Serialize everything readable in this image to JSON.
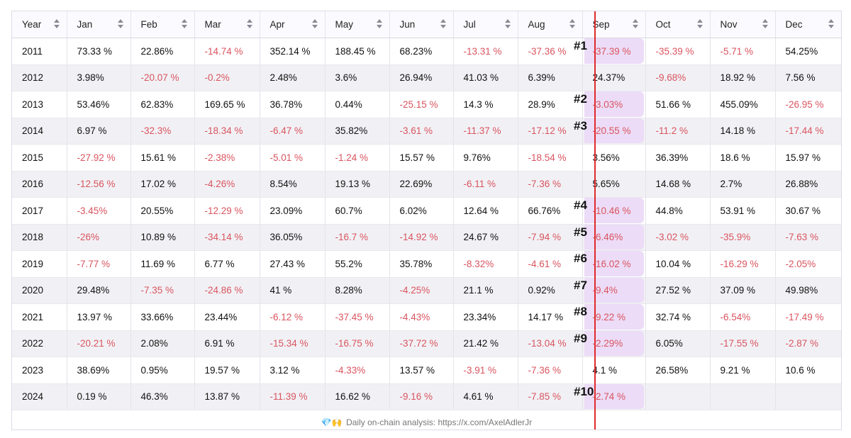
{
  "header": {
    "year": "Year",
    "months": [
      "Jan",
      "Feb",
      "Mar",
      "Apr",
      "May",
      "Jun",
      "Jul",
      "Aug",
      "Sep",
      "Oct",
      "Nov",
      "Dec"
    ]
  },
  "rows": [
    {
      "year": "2011",
      "vals": [
        "73.33 %",
        "22.86%",
        "-14.74 %",
        "352.14 %",
        "188.45 %",
        "68.23%",
        "-13.31 %",
        "-37.36 %",
        "-37.39 %",
        "-35.39 %",
        "-5.71 %",
        "54.25%"
      ]
    },
    {
      "year": "2012",
      "vals": [
        "3.98%",
        "-20.07 %",
        "-0.2%",
        "2.48%",
        "3.6%",
        "26.94%",
        "41.03 %",
        "6.39%",
        "24.37%",
        "-9.68%",
        "18.92 %",
        "7.56 %"
      ]
    },
    {
      "year": "2013",
      "vals": [
        "53.46%",
        "62.83%",
        "169.65 %",
        "36.78%",
        "0.44%",
        "-25.15 %",
        "14.3 %",
        "28.9%",
        "-3.03%",
        "51.66 %",
        "455.09%",
        "-26.95 %"
      ]
    },
    {
      "year": "2014",
      "vals": [
        "6.97 %",
        "-32.3%",
        "-18.34 %",
        "-6.47 %",
        "35.82%",
        "-3.61 %",
        "-11.37 %",
        "-17.12 %",
        "-20.55 %",
        "-11.2 %",
        "14.18 %",
        "-17.44 %"
      ]
    },
    {
      "year": "2015",
      "vals": [
        "-27.92 %",
        "15.61 %",
        "-2.38%",
        "-5.01 %",
        "-1.24 %",
        "15.57 %",
        "9.76%",
        "-18.54 %",
        "3.56%",
        "36.39%",
        "18.6 %",
        "15.97 %"
      ]
    },
    {
      "year": "2016",
      "vals": [
        "-12.56 %",
        "17.02 %",
        "-4.26%",
        "8.54%",
        "19.13 %",
        "22.69%",
        "-6.11 %",
        "-7.36 %",
        "5.65%",
        "14.68 %",
        "2.7%",
        "26.88%"
      ]
    },
    {
      "year": "2017",
      "vals": [
        "-3.45%",
        "20.55%",
        "-12.29 %",
        "23.09%",
        "60.7%",
        "6.02%",
        "12.64 %",
        "66.76%",
        "-10.46 %",
        "44.8%",
        "53.91 %",
        "30.67 %"
      ]
    },
    {
      "year": "2018",
      "vals": [
        "-26%",
        "10.89 %",
        "-34.14 %",
        "36.05%",
        "-16.7 %",
        "-14.92 %",
        "24.67 %",
        "-7.94 %",
        "-6.46%",
        "-3.02 %",
        "-35.9%",
        "-7.63 %"
      ]
    },
    {
      "year": "2019",
      "vals": [
        "-7.77 %",
        "11.69 %",
        "6.77 %",
        "27.43 %",
        "55.2%",
        "35.78%",
        "-8.32%",
        "-4.61 %",
        "-16.02 %",
        "10.04 %",
        "-16.29 %",
        "-2.05%"
      ]
    },
    {
      "year": "2020",
      "vals": [
        "29.48%",
        "-7.35 %",
        "-24.86 %",
        "41 %",
        "8.28%",
        "-4.25%",
        "21.1 %",
        "0.92%",
        "-9.4%",
        "27.52 %",
        "37.09 %",
        "49.98%"
      ]
    },
    {
      "year": "2021",
      "vals": [
        "13.97 %",
        "33.66%",
        "23.44%",
        "-6.12 %",
        "-37.45 %",
        "-4.43%",
        "23.34%",
        "14.17 %",
        "-9.22 %",
        "32.74 %",
        "-6.54%",
        "-17.49 %"
      ]
    },
    {
      "year": "2022",
      "vals": [
        "-20.21 %",
        "2.08%",
        "6.91 %",
        "-15.34 %",
        "-16.75 %",
        "-37.72 %",
        "21.42 %",
        "-13.04 %",
        "-2.29%",
        "6.05%",
        "-17.55 %",
        "-2.87 %"
      ]
    },
    {
      "year": "2023",
      "vals": [
        "38.69%",
        "0.95%",
        "19.57 %",
        "3.12 %",
        "-4.33%",
        "13.57 %",
        "-3.91 %",
        "-7.36 %",
        "4.1 %",
        "26.58%",
        "9.21 %",
        "10.6 %"
      ]
    },
    {
      "year": "2024",
      "vals": [
        "0.19 %",
        "46.3%",
        "13.87 %",
        "-11.39 %",
        "16.62 %",
        "-9.16 %",
        "4.61 %",
        "-7.85 %",
        "-2.74 %",
        "",
        "",
        ""
      ]
    }
  ],
  "ranks": [
    {
      "label": "#1",
      "row": 0
    },
    {
      "label": "#2",
      "row": 2
    },
    {
      "label": "#3",
      "row": 3
    },
    {
      "label": "#4",
      "row": 6
    },
    {
      "label": "#5",
      "row": 7
    },
    {
      "label": "#6",
      "row": 8
    },
    {
      "label": "#7",
      "row": 9
    },
    {
      "label": "#8",
      "row": 10
    },
    {
      "label": "#9",
      "row": 11
    },
    {
      "label": "#10",
      "row": 13
    }
  ],
  "footer": {
    "icons": "💎🙌",
    "text": "Daily on-chain analysis: https://x.com/AxelAdlerJr"
  },
  "colors": {
    "negative": "#d9545f",
    "highlight": "#ecdcf7",
    "divider": "#e02a2a"
  },
  "highlighted_month": "Sep"
}
